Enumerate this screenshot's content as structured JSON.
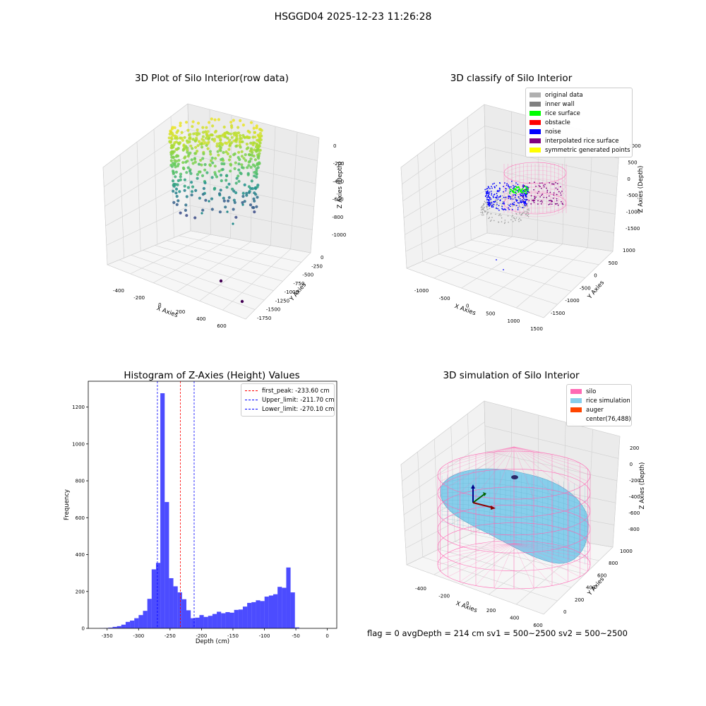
{
  "suptitle": "HSGGD04 2025-12-23 11:26:28",
  "footer": "flag = 0     avgDepth = 214 cm  sv1 = 500~2500  sv2 = 500~2500",
  "chart_data": [
    {
      "type": "scatter",
      "title": "3D Plot of Silo Interior(row data)",
      "xlabel": "X Axies",
      "ylabel": "Y Axies",
      "zlabel": "Z Axies (Depth)",
      "x_ticks": [
        "-400",
        "-200",
        "0",
        "200",
        "400",
        "600"
      ],
      "y_ticks": [
        "0",
        "-250",
        "-500",
        "-750",
        "-1000",
        "-1250",
        "-1500",
        "-1750"
      ],
      "z_ticks": [
        "0",
        "-200",
        "-400",
        "-600",
        "-800",
        "-1000"
      ],
      "xlim": [
        -480,
        680
      ],
      "ylim": [
        -1850,
        100
      ],
      "zlim": [
        -1100,
        60
      ],
      "colormap": "viridis",
      "description_points": [
        {
          "x": 560,
          "y": -1500,
          "z": -1050,
          "color": "#440154"
        },
        {
          "x": 380,
          "y": -1150,
          "z": -1050,
          "color": "#440154"
        }
      ]
    },
    {
      "type": "scatter",
      "title": "3D classify of Silo Interior",
      "xlabel": "X Axies",
      "ylabel": "Y Axies",
      "zlabel": "Z Axies (Depth)",
      "x_ticks": [
        "-1000",
        "-500",
        "0",
        "500",
        "1000",
        "1500"
      ],
      "y_ticks": [
        "1000",
        "500",
        "0",
        "-500",
        "-1000",
        "-1500"
      ],
      "z_ticks": [
        "1000",
        "500",
        "0",
        "-500",
        "-1000",
        "-1500"
      ],
      "xlim": [
        -1200,
        1600
      ],
      "ylim": [
        -1700,
        1150
      ],
      "zlim": [
        -1700,
        1100
      ],
      "legend": [
        {
          "label": "original data",
          "color": "#b0b0b0"
        },
        {
          "label": "inner wall",
          "color": "#808080"
        },
        {
          "label": "rice surface",
          "color": "#00ff00"
        },
        {
          "label": "obstacle",
          "color": "#ff0000"
        },
        {
          "label": "noise",
          "color": "#0000ff"
        },
        {
          "label": "interpolated rice surface",
          "color": "#800080"
        },
        {
          "label": "symmetric generated points",
          "color": "#ffff00"
        }
      ]
    },
    {
      "type": "bar",
      "title": "Histogram of Z-Axies (Height) Values",
      "xlabel": "Depth (cm)",
      "ylabel": "Frequency",
      "xlim": [
        -380,
        15
      ],
      "ylim": [
        0,
        1340
      ],
      "x_ticks": [
        -350,
        -300,
        -250,
        -200,
        -150,
        -100,
        -50,
        0
      ],
      "y_ticks": [
        0,
        200,
        400,
        600,
        800,
        1000,
        1200
      ],
      "bar_color": "#0000ff",
      "bin_start": -362,
      "bin_width": 6.9,
      "values": [
        1,
        2,
        4,
        8,
        12,
        20,
        35,
        42,
        55,
        72,
        95,
        160,
        320,
        355,
        1275,
        685,
        272,
        228,
        195,
        158,
        98,
        55,
        58,
        72,
        62,
        68,
        78,
        90,
        82,
        88,
        85,
        100,
        102,
        118,
        138,
        142,
        152,
        148,
        172,
        178,
        185,
        225,
        220,
        330,
        195,
        5
      ],
      "vlines": [
        {
          "label": "first_peak: -233.60 cm",
          "x": -233.6,
          "color": "#ff0000"
        },
        {
          "label": "Upper_limit: -211.70 cm",
          "x": -211.7,
          "color": "#0000ff"
        },
        {
          "label": "Lower_limit: -270.10 cm",
          "x": -270.1,
          "color": "#0000ff"
        }
      ]
    },
    {
      "type": "area",
      "title": "3D simulation of Silo Interior",
      "xlabel": "X Axies",
      "ylabel": "Y Axies",
      "zlabel": "Z Axies (Depth)",
      "x_ticks": [
        "-400",
        "-200",
        "0",
        "200",
        "400",
        "600"
      ],
      "y_ticks": [
        "0",
        "200",
        "400",
        "600",
        "800",
        "1000"
      ],
      "z_ticks": [
        "200",
        "0",
        "-200",
        "-400",
        "-600",
        "-800"
      ],
      "xlim": [
        -480,
        680
      ],
      "ylim": [
        -100,
        1050
      ],
      "zlim": [
        -1000,
        300
      ],
      "legend": [
        {
          "label": "silo",
          "color": "#ff69b4"
        },
        {
          "label": "rice simulation",
          "color": "#87ceeb"
        },
        {
          "label": "auger",
          "color": "#ff4500"
        },
        {
          "label": "center(76,488)",
          "color": ""
        }
      ]
    }
  ]
}
